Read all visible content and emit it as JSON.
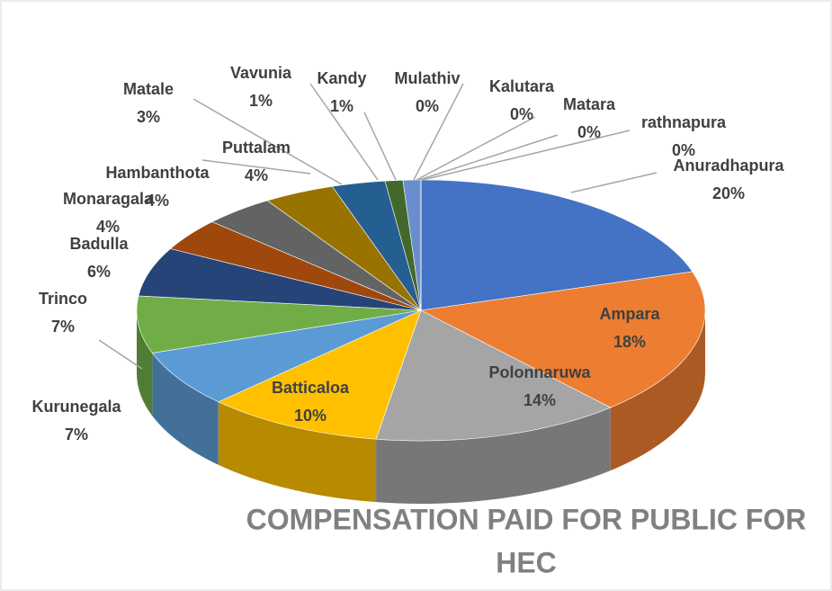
{
  "chart_data": {
    "type": "pie",
    "title": [
      "COMPENSATION PAID FOR PUBLIC FOR",
      "HEC"
    ],
    "categories": [
      "Anuradhapura",
      "Ampara",
      "Polonnaruwa",
      "Batticaloa",
      "Kurunegala",
      "Trinco",
      "Badulla",
      "Monaragala",
      "Hambanthota",
      "Puttalam",
      "Matale",
      "Vavunia",
      "Kandy",
      "Mulathiv",
      "Kalutara",
      "Matara",
      "rathnapura"
    ],
    "values": [
      20,
      18,
      14,
      10,
      7,
      7,
      6,
      4,
      4,
      4,
      3,
      1,
      1,
      0,
      0,
      0,
      0
    ],
    "value_labels": [
      "20%",
      "18%",
      "14%",
      "10%",
      "7%",
      "7%",
      "6%",
      "4%",
      "4%",
      "4%",
      "3%",
      "1%",
      "1%",
      "0%",
      "0%",
      "0%",
      "0%"
    ],
    "colors": [
      "#4472c4",
      "#ed7d31",
      "#a5a5a5",
      "#ffc000",
      "#5b9bd5",
      "#70ad47",
      "#264478",
      "#9e480e",
      "#636363",
      "#997300",
      "#255e91",
      "#43682b",
      "#698ed0",
      "#f1975a",
      "#b7b7b7",
      "#ffcd33",
      "#7cafdd"
    ]
  }
}
